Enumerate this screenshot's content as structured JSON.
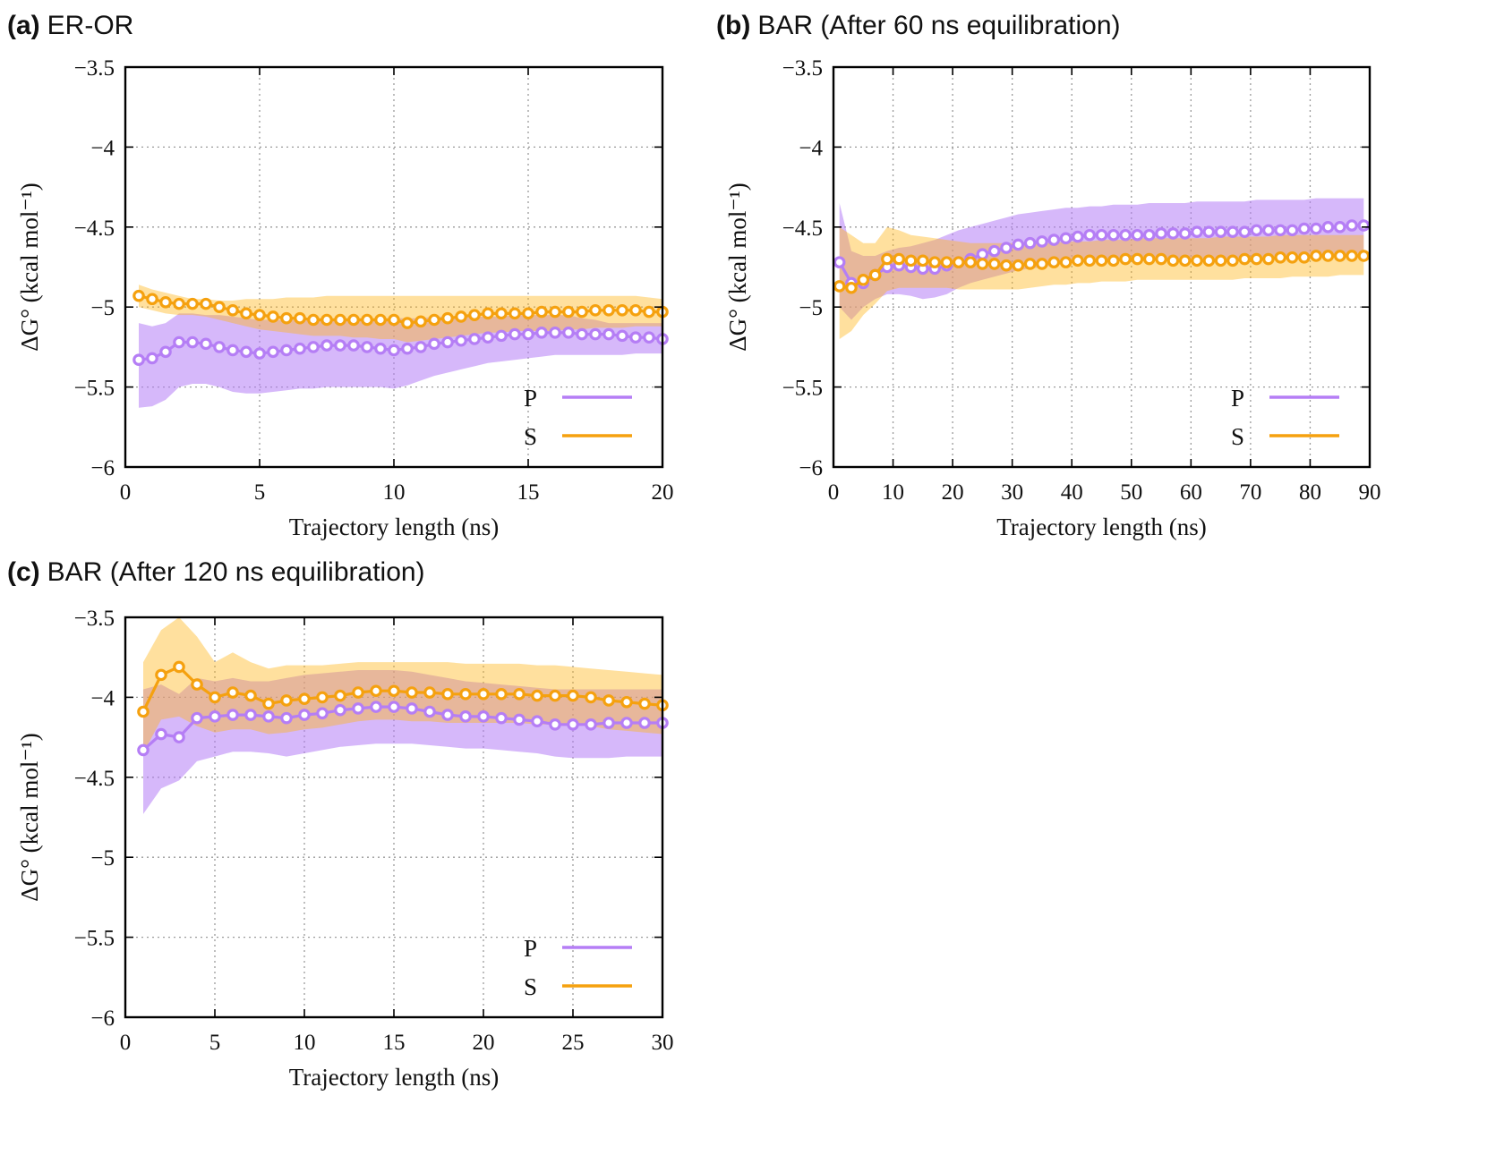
{
  "colors": {
    "P": "#b57ef5",
    "S": "#f5a10f",
    "P_band": "#b57ef5",
    "S_band": "#ffb418"
  },
  "legend_labels": [
    "P",
    "S"
  ],
  "chart_data": [
    {
      "type": "line",
      "panel_tag": "(a)",
      "panel_name": "ER-OR",
      "xlabel": "Trajectory length (ns)",
      "ylabel": "ΔG° (kcal mol⁻¹)",
      "xlim": [
        0,
        20
      ],
      "ylim": [
        -6,
        -3.5
      ],
      "xticks": [
        0,
        5,
        10,
        15,
        20
      ],
      "yticks": [
        -6,
        -5.5,
        -5,
        -4.5,
        -4,
        -3.5
      ],
      "ytick_labels": [
        "−6",
        "−5.5",
        "−5",
        "−4.5",
        "−4",
        "−3.5"
      ],
      "grid": true,
      "legend_position": "bottom-right",
      "x": [
        0.5,
        1,
        1.5,
        2,
        2.5,
        3,
        3.5,
        4,
        4.5,
        5,
        5.5,
        6,
        6.5,
        7,
        7.5,
        8,
        8.5,
        9,
        9.5,
        10,
        10.5,
        11,
        11.5,
        12,
        12.5,
        13,
        13.5,
        14,
        14.5,
        15,
        15.5,
        16,
        16.5,
        17,
        17.5,
        18,
        18.5,
        19,
        19.5,
        20
      ],
      "series": [
        {
          "name": "P",
          "values": [
            -5.33,
            -5.32,
            -5.28,
            -5.22,
            -5.22,
            -5.23,
            -5.25,
            -5.27,
            -5.28,
            -5.29,
            -5.28,
            -5.27,
            -5.26,
            -5.25,
            -5.24,
            -5.24,
            -5.24,
            -5.25,
            -5.26,
            -5.27,
            -5.26,
            -5.25,
            -5.23,
            -5.22,
            -5.21,
            -5.2,
            -5.19,
            -5.18,
            -5.17,
            -5.17,
            -5.16,
            -5.16,
            -5.16,
            -5.17,
            -5.17,
            -5.17,
            -5.18,
            -5.19,
            -5.19,
            -5.2
          ],
          "band_upper": [
            -5.1,
            -5.12,
            -5.1,
            -5.04,
            -5.04,
            -5.05,
            -5.05,
            -5.06,
            -5.07,
            -5.08,
            -5.08,
            -5.08,
            -5.08,
            -5.07,
            -5.07,
            -5.07,
            -5.07,
            -5.07,
            -5.07,
            -5.07,
            -5.07,
            -5.07,
            -5.06,
            -5.06,
            -5.06,
            -5.06,
            -5.06,
            -5.06,
            -5.05,
            -5.05,
            -5.05,
            -5.05,
            -5.05,
            -5.07,
            -5.08,
            -5.1,
            -5.1,
            -5.1,
            -5.1,
            -5.1
          ],
          "band_lower": [
            -5.63,
            -5.62,
            -5.58,
            -5.5,
            -5.48,
            -5.48,
            -5.5,
            -5.53,
            -5.54,
            -5.54,
            -5.53,
            -5.52,
            -5.51,
            -5.51,
            -5.5,
            -5.5,
            -5.5,
            -5.5,
            -5.5,
            -5.51,
            -5.49,
            -5.46,
            -5.43,
            -5.41,
            -5.39,
            -5.37,
            -5.35,
            -5.34,
            -5.33,
            -5.32,
            -5.31,
            -5.3,
            -5.3,
            -5.3,
            -5.3,
            -5.3,
            -5.3,
            -5.29,
            -5.29,
            -5.29
          ]
        },
        {
          "name": "S",
          "values": [
            -4.93,
            -4.95,
            -4.97,
            -4.98,
            -4.98,
            -4.98,
            -5.0,
            -5.02,
            -5.04,
            -5.05,
            -5.06,
            -5.07,
            -5.07,
            -5.08,
            -5.08,
            -5.08,
            -5.08,
            -5.08,
            -5.08,
            -5.08,
            -5.1,
            -5.09,
            -5.08,
            -5.07,
            -5.06,
            -5.05,
            -5.04,
            -5.04,
            -5.04,
            -5.04,
            -5.03,
            -5.03,
            -5.03,
            -5.03,
            -5.02,
            -5.02,
            -5.02,
            -5.02,
            -5.03,
            -5.03
          ],
          "band_upper": [
            -4.86,
            -4.89,
            -4.91,
            -4.93,
            -4.95,
            -4.95,
            -4.96,
            -4.96,
            -4.95,
            -4.95,
            -4.95,
            -4.94,
            -4.94,
            -4.94,
            -4.93,
            -4.93,
            -4.93,
            -4.93,
            -4.93,
            -4.93,
            -4.93,
            -4.93,
            -4.93,
            -4.93,
            -4.93,
            -4.93,
            -4.93,
            -4.93,
            -4.93,
            -4.93,
            -4.93,
            -4.93,
            -4.93,
            -4.93,
            -4.93,
            -4.93,
            -4.93,
            -4.93,
            -4.94,
            -4.95
          ],
          "band_lower": [
            -5.0,
            -5.02,
            -5.04,
            -5.05,
            -5.05,
            -5.06,
            -5.08,
            -5.1,
            -5.12,
            -5.14,
            -5.15,
            -5.16,
            -5.17,
            -5.18,
            -5.18,
            -5.18,
            -5.19,
            -5.19,
            -5.2,
            -5.2,
            -5.22,
            -5.21,
            -5.2,
            -5.19,
            -5.18,
            -5.17,
            -5.16,
            -5.16,
            -5.15,
            -5.15,
            -5.15,
            -5.15,
            -5.14,
            -5.14,
            -5.13,
            -5.13,
            -5.13,
            -5.12,
            -5.12,
            -5.12
          ]
        }
      ]
    },
    {
      "type": "line",
      "panel_tag": "(b)",
      "panel_name": "BAR (After 60 ns equilibration)",
      "xlabel": "Trajectory length (ns)",
      "ylabel": "ΔG° (kcal mol⁻¹)",
      "xlim": [
        0,
        90
      ],
      "ylim": [
        -6,
        -3.5
      ],
      "xticks": [
        0,
        10,
        20,
        30,
        40,
        50,
        60,
        70,
        80,
        90
      ],
      "yticks": [
        -6,
        -5.5,
        -5,
        -4.5,
        -4,
        -3.5
      ],
      "ytick_labels": [
        "−6",
        "−5.5",
        "−5",
        "−4.5",
        "−4",
        "−3.5"
      ],
      "grid": true,
      "legend_position": "bottom-right",
      "x": [
        1,
        3,
        5,
        7,
        9,
        11,
        13,
        15,
        17,
        19,
        21,
        23,
        25,
        27,
        29,
        31,
        33,
        35,
        37,
        39,
        41,
        43,
        45,
        47,
        49,
        51,
        53,
        55,
        57,
        59,
        61,
        63,
        65,
        67,
        69,
        71,
        73,
        75,
        77,
        79,
        81,
        83,
        85,
        87,
        89
      ],
      "series": [
        {
          "name": "P",
          "values": [
            -4.72,
            -4.85,
            -4.85,
            -4.8,
            -4.75,
            -4.74,
            -4.75,
            -4.76,
            -4.76,
            -4.74,
            -4.72,
            -4.7,
            -4.67,
            -4.65,
            -4.63,
            -4.61,
            -4.6,
            -4.59,
            -4.58,
            -4.57,
            -4.56,
            -4.55,
            -4.55,
            -4.55,
            -4.55,
            -4.55,
            -4.55,
            -4.54,
            -4.54,
            -4.54,
            -4.53,
            -4.53,
            -4.53,
            -4.53,
            -4.53,
            -4.52,
            -4.52,
            -4.52,
            -4.52,
            -4.51,
            -4.51,
            -4.5,
            -4.5,
            -4.49,
            -4.49
          ],
          "band_upper": [
            -4.35,
            -4.65,
            -4.68,
            -4.68,
            -4.65,
            -4.63,
            -4.62,
            -4.6,
            -4.58,
            -4.55,
            -4.52,
            -4.5,
            -4.48,
            -4.46,
            -4.44,
            -4.42,
            -4.41,
            -4.4,
            -4.39,
            -4.38,
            -4.38,
            -4.37,
            -4.37,
            -4.36,
            -4.36,
            -4.36,
            -4.35,
            -4.35,
            -4.35,
            -4.35,
            -4.34,
            -4.34,
            -4.34,
            -4.34,
            -4.34,
            -4.33,
            -4.33,
            -4.33,
            -4.33,
            -4.33,
            -4.32,
            -4.32,
            -4.32,
            -4.32,
            -4.32
          ],
          "band_lower": [
            -5.0,
            -5.08,
            -5.0,
            -4.95,
            -4.92,
            -4.92,
            -4.93,
            -4.95,
            -4.94,
            -4.92,
            -4.88,
            -4.85,
            -4.83,
            -4.81,
            -4.79,
            -4.77,
            -4.76,
            -4.75,
            -4.74,
            -4.73,
            -4.72,
            -4.72,
            -4.71,
            -4.71,
            -4.71,
            -4.71,
            -4.71,
            -4.71,
            -4.71,
            -4.71,
            -4.71,
            -4.71,
            -4.71,
            -4.7,
            -4.7,
            -4.7,
            -4.69,
            -4.69,
            -4.69,
            -4.69,
            -4.68,
            -4.68,
            -4.67,
            -4.67,
            -4.66
          ]
        },
        {
          "name": "S",
          "values": [
            -4.87,
            -4.88,
            -4.83,
            -4.8,
            -4.7,
            -4.7,
            -4.71,
            -4.71,
            -4.72,
            -4.72,
            -4.72,
            -4.72,
            -4.73,
            -4.73,
            -4.74,
            -4.74,
            -4.73,
            -4.73,
            -4.72,
            -4.72,
            -4.71,
            -4.71,
            -4.71,
            -4.71,
            -4.7,
            -4.7,
            -4.7,
            -4.7,
            -4.71,
            -4.71,
            -4.71,
            -4.71,
            -4.71,
            -4.71,
            -4.7,
            -4.7,
            -4.7,
            -4.69,
            -4.69,
            -4.69,
            -4.68,
            -4.68,
            -4.68,
            -4.68,
            -4.68
          ],
          "band_upper": [
            -4.5,
            -4.55,
            -4.6,
            -4.6,
            -4.5,
            -4.52,
            -4.55,
            -4.56,
            -4.57,
            -4.58,
            -4.59,
            -4.6,
            -4.6,
            -4.6,
            -4.6,
            -4.6,
            -4.6,
            -4.6,
            -4.6,
            -4.59,
            -4.59,
            -4.59,
            -4.58,
            -4.58,
            -4.58,
            -4.57,
            -4.57,
            -4.57,
            -4.57,
            -4.57,
            -4.57,
            -4.57,
            -4.56,
            -4.56,
            -4.56,
            -4.56,
            -4.56,
            -4.55,
            -4.55,
            -4.55,
            -4.55,
            -4.55,
            -4.55,
            -4.55,
            -4.55
          ],
          "band_lower": [
            -5.2,
            -5.15,
            -5.05,
            -4.98,
            -4.9,
            -4.88,
            -4.88,
            -4.88,
            -4.88,
            -4.88,
            -4.89,
            -4.89,
            -4.89,
            -4.89,
            -4.89,
            -4.89,
            -4.88,
            -4.87,
            -4.86,
            -4.86,
            -4.85,
            -4.85,
            -4.84,
            -4.84,
            -4.84,
            -4.83,
            -4.83,
            -4.83,
            -4.83,
            -4.83,
            -4.83,
            -4.83,
            -4.83,
            -4.83,
            -4.82,
            -4.82,
            -4.82,
            -4.82,
            -4.81,
            -4.81,
            -4.81,
            -4.81,
            -4.8,
            -4.8,
            -4.8
          ]
        }
      ]
    },
    {
      "type": "line",
      "panel_tag": "(c)",
      "panel_name": "BAR (After 120 ns equilibration)",
      "xlabel": "Trajectory length (ns)",
      "ylabel": "ΔG° (kcal mol⁻¹)",
      "xlim": [
        0,
        30
      ],
      "ylim": [
        -6,
        -3.5
      ],
      "xticks": [
        0,
        5,
        10,
        15,
        20,
        25,
        30
      ],
      "yticks": [
        -6,
        -5.5,
        -5,
        -4.5,
        -4,
        -3.5
      ],
      "ytick_labels": [
        "−6",
        "−5.5",
        "−5",
        "−4.5",
        "−4",
        "−3.5"
      ],
      "grid": true,
      "legend_position": "bottom-right",
      "x": [
        1,
        2,
        3,
        4,
        5,
        6,
        7,
        8,
        9,
        10,
        11,
        12,
        13,
        14,
        15,
        16,
        17,
        18,
        19,
        20,
        21,
        22,
        23,
        24,
        25,
        26,
        27,
        28,
        29,
        30
      ],
      "series": [
        {
          "name": "P",
          "values": [
            -4.33,
            -4.23,
            -4.25,
            -4.13,
            -4.12,
            -4.11,
            -4.11,
            -4.12,
            -4.13,
            -4.11,
            -4.1,
            -4.08,
            -4.07,
            -4.06,
            -4.06,
            -4.07,
            -4.09,
            -4.11,
            -4.12,
            -4.12,
            -4.13,
            -4.14,
            -4.15,
            -4.17,
            -4.17,
            -4.17,
            -4.16,
            -4.16,
            -4.16,
            -4.16
          ],
          "band_upper": [
            -3.95,
            -3.92,
            -3.98,
            -3.88,
            -3.9,
            -3.88,
            -3.9,
            -3.9,
            -3.88,
            -3.86,
            -3.85,
            -3.84,
            -3.83,
            -3.83,
            -3.83,
            -3.84,
            -3.86,
            -3.88,
            -3.9,
            -3.91,
            -3.92,
            -3.93,
            -3.94,
            -3.95,
            -3.95,
            -3.95,
            -3.95,
            -3.95,
            -3.95,
            -3.95
          ],
          "band_lower": [
            -4.73,
            -4.57,
            -4.52,
            -4.4,
            -4.37,
            -4.34,
            -4.34,
            -4.35,
            -4.37,
            -4.35,
            -4.33,
            -4.31,
            -4.3,
            -4.29,
            -4.29,
            -4.29,
            -4.3,
            -4.31,
            -4.32,
            -4.32,
            -4.33,
            -4.34,
            -4.35,
            -4.37,
            -4.38,
            -4.38,
            -4.38,
            -4.37,
            -4.37,
            -4.37
          ]
        },
        {
          "name": "S",
          "values": [
            -4.09,
            -3.86,
            -3.81,
            -3.92,
            -4.0,
            -3.97,
            -3.99,
            -4.04,
            -4.02,
            -4.01,
            -4.0,
            -3.99,
            -3.97,
            -3.96,
            -3.96,
            -3.97,
            -3.97,
            -3.98,
            -3.98,
            -3.98,
            -3.98,
            -3.98,
            -3.99,
            -3.99,
            -3.99,
            -4.0,
            -4.02,
            -4.03,
            -4.04,
            -4.05
          ],
          "band_upper": [
            -3.78,
            -3.58,
            -3.5,
            -3.62,
            -3.78,
            -3.72,
            -3.78,
            -3.82,
            -3.8,
            -3.8,
            -3.8,
            -3.79,
            -3.78,
            -3.78,
            -3.78,
            -3.78,
            -3.78,
            -3.78,
            -3.79,
            -3.79,
            -3.79,
            -3.79,
            -3.8,
            -3.8,
            -3.81,
            -3.82,
            -3.83,
            -3.84,
            -3.85,
            -3.86
          ],
          "band_lower": [
            -4.35,
            -4.14,
            -4.12,
            -4.18,
            -4.22,
            -4.2,
            -4.2,
            -4.23,
            -4.22,
            -4.2,
            -4.19,
            -4.17,
            -4.15,
            -4.14,
            -4.14,
            -4.15,
            -4.15,
            -4.16,
            -4.16,
            -4.16,
            -4.16,
            -4.16,
            -4.17,
            -4.17,
            -4.17,
            -4.18,
            -4.2,
            -4.21,
            -4.22,
            -4.23
          ]
        }
      ]
    }
  ]
}
